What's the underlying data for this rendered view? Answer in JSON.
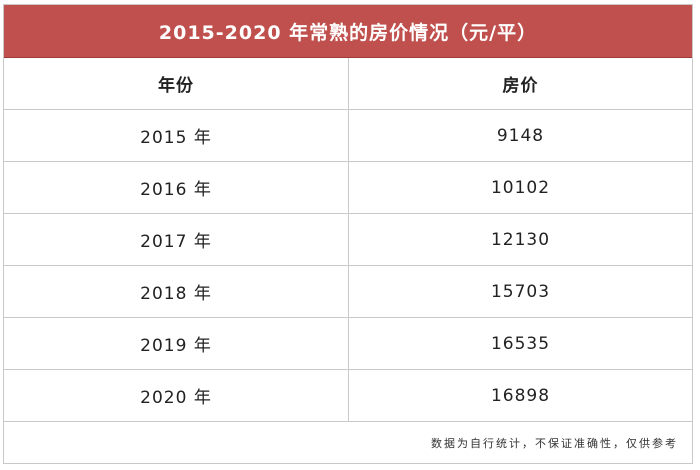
{
  "chart_data": {
    "type": "table",
    "title": "2015-2020 年常熟的房价情况（元/平）",
    "columns": [
      "年份",
      "房价"
    ],
    "rows": [
      [
        "2015 年",
        "9148"
      ],
      [
        "2016 年",
        "10102"
      ],
      [
        "2017 年",
        "12130"
      ],
      [
        "2018 年",
        "15703"
      ],
      [
        "2019 年",
        "16535"
      ],
      [
        "2020 年",
        "16898"
      ]
    ],
    "x": [
      2015,
      2016,
      2017,
      2018,
      2019,
      2020
    ],
    "values": [
      9148,
      10102,
      12130,
      15703,
      16535,
      16898
    ],
    "footnote": "数据为自行统计，不保证准确性，仅供参考"
  },
  "colors": {
    "header_background": "#c0504d",
    "header_text": "#ffffff",
    "grid_line": "#c9c9c9"
  }
}
